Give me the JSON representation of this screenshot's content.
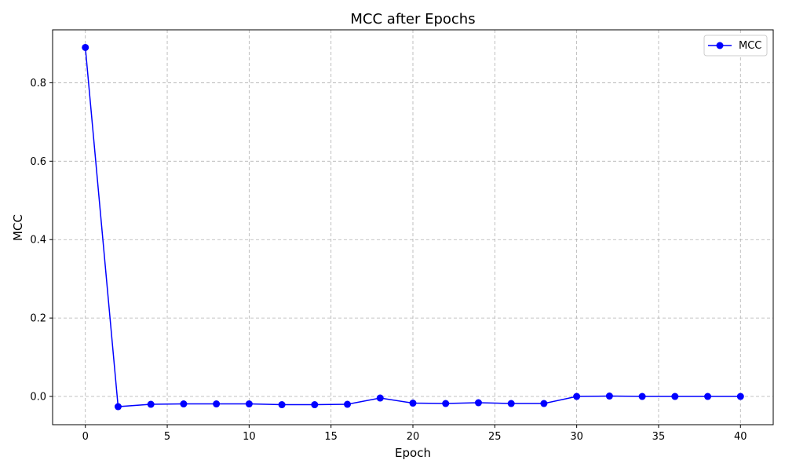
{
  "chart_data": {
    "type": "line",
    "title": "MCC after Epochs",
    "xlabel": "Epoch",
    "ylabel": "MCC",
    "xlim": [
      -2,
      42
    ],
    "ylim": [
      -0.072,
      0.935
    ],
    "xticks": [
      0,
      5,
      10,
      15,
      20,
      25,
      30,
      35,
      40
    ],
    "yticks": [
      0.0,
      0.2,
      0.4,
      0.6,
      0.8
    ],
    "xtick_labels": [
      "0",
      "5",
      "10",
      "15",
      "20",
      "25",
      "30",
      "35",
      "40"
    ],
    "ytick_labels": [
      "0.0",
      "0.2",
      "0.4",
      "0.6",
      "0.8"
    ],
    "grid": true,
    "legend_position": "top-right",
    "series": [
      {
        "name": "MCC",
        "color": "#0000ff",
        "marker": "circle",
        "x": [
          0,
          2,
          4,
          6,
          8,
          10,
          12,
          14,
          16,
          18,
          20,
          22,
          24,
          26,
          28,
          30,
          32,
          34,
          36,
          38,
          40
        ],
        "y": [
          0.89,
          -0.026,
          -0.02,
          -0.019,
          -0.019,
          -0.019,
          -0.021,
          -0.021,
          -0.02,
          -0.004,
          -0.017,
          -0.018,
          -0.016,
          -0.018,
          -0.018,
          0.0,
          0.001,
          0.0,
          0.0,
          0.0,
          0.0
        ]
      }
    ]
  }
}
